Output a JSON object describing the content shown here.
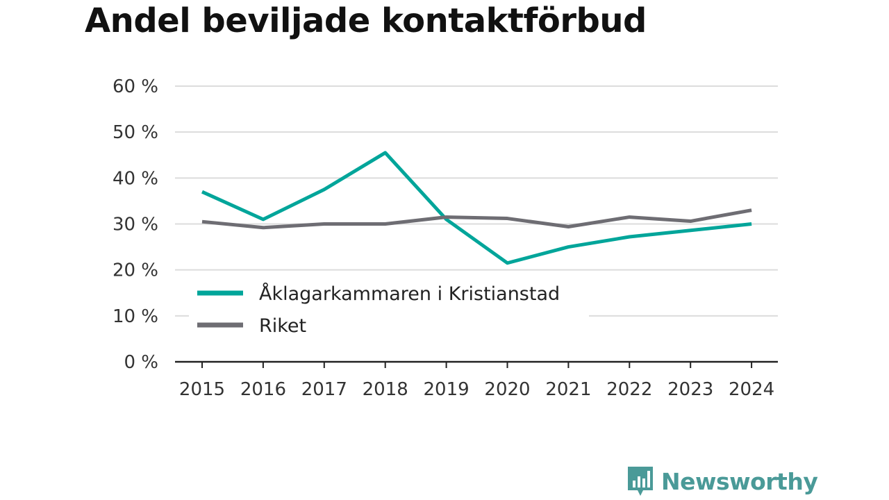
{
  "brand": {
    "name": "Newsworthy",
    "color": "#4a9a98"
  },
  "chart_data": {
    "type": "line",
    "title": "Andel beviljade kontaktförbud",
    "xlabel": "",
    "ylabel": "",
    "x": [
      "2015",
      "2016",
      "2017",
      "2018",
      "2019",
      "2020",
      "2021",
      "2022",
      "2023",
      "2024"
    ],
    "ylim": [
      0,
      60
    ],
    "yticks": [
      0,
      10,
      20,
      30,
      40,
      50,
      60
    ],
    "ytick_labels": [
      "0 %",
      "10 %",
      "20 %",
      "30 %",
      "40 %",
      "50 %",
      "60 %"
    ],
    "grid": true,
    "legend_position": "lower-left",
    "series": [
      {
        "name": "Åklagarkammaren i Kristianstad",
        "color": "#00a59a",
        "values": [
          37,
          31,
          37.5,
          45.5,
          31,
          21.5,
          25,
          27.2,
          28.6,
          30
        ]
      },
      {
        "name": "Riket",
        "color": "#6e6d73",
        "values": [
          30.5,
          29.2,
          30,
          30,
          31.5,
          31.2,
          29.4,
          31.5,
          30.6,
          33
        ]
      }
    ]
  }
}
